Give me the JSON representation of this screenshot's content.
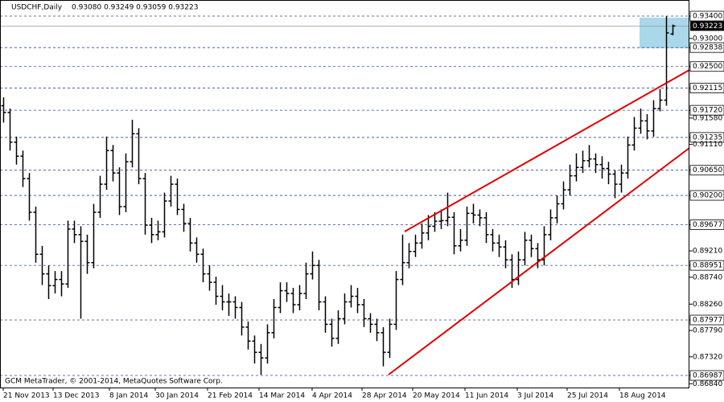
{
  "chart_data": {
    "type": "ohlc",
    "title": "USDCHF,Daily",
    "header_values": "0.93080 0.93249 0.93059 0.93223",
    "footer": "GCM MetaTrader, © 2001-2014, MetaQuotes Software Corp.",
    "ylim": [
      0.86772,
      0.93687
    ],
    "yticks": [
      {
        "value": 0.934,
        "label": "0.93400"
      },
      {
        "value": 0.93,
        "label": "0.93000"
      },
      {
        "value": 0.92838,
        "label": "0.92838"
      },
      {
        "value": 0.925,
        "label": "0.92500"
      },
      {
        "value": 0.92115,
        "label": "0.92115"
      },
      {
        "value": 0.9172,
        "label": "0.91720"
      },
      {
        "value": 0.9158,
        "label": "0.91580"
      },
      {
        "value": 0.91235,
        "label": "0.91235"
      },
      {
        "value": 0.9111,
        "label": "0.91110"
      },
      {
        "value": 0.9065,
        "label": "0.90650"
      },
      {
        "value": 0.902,
        "label": "0.90200"
      },
      {
        "value": 0.89677,
        "label": "0.89677"
      },
      {
        "value": 0.8921,
        "label": "0.89210"
      },
      {
        "value": 0.88951,
        "label": "0.88951"
      },
      {
        "value": 0.8874,
        "label": "0.88740"
      },
      {
        "value": 0.8826,
        "label": "0.88260"
      },
      {
        "value": 0.87977,
        "label": "0.87977"
      },
      {
        "value": 0.8779,
        "label": "0.87790"
      },
      {
        "value": 0.8732,
        "label": "0.87320"
      },
      {
        "value": 0.86987,
        "label": "0.86987"
      },
      {
        "value": 0.8684,
        "label": "0.86840"
      }
    ],
    "hlines": [
      0.934,
      0.92838,
      0.925,
      0.92115,
      0.9172,
      0.91235,
      0.9065,
      0.902,
      0.89677,
      0.88951,
      0.87977,
      0.86987
    ],
    "current_price": {
      "value": 0.93223,
      "label": "0.93223"
    },
    "xticks": [
      "21 Nov 2013",
      "13 Dec 2013",
      "8 Jan 2014",
      "30 Jan 2014",
      "21 Feb 2014",
      "14 Mar 2014",
      "4 Apr 2014",
      "28 Apr 2014",
      "20 May 2014",
      "11 Jun 2014",
      "3 Jul 2014",
      "25 Jul 2014",
      "18 Aug 2014"
    ],
    "ohlc": [
      [
        0.918,
        0.9195,
        0.915,
        0.9168
      ],
      [
        0.9168,
        0.9175,
        0.91,
        0.9115
      ],
      [
        0.9115,
        0.9125,
        0.9075,
        0.909
      ],
      [
        0.909,
        0.91,
        0.9035,
        0.905
      ],
      [
        0.905,
        0.906,
        0.8975,
        0.899
      ],
      [
        0.899,
        0.9,
        0.89,
        0.8915
      ],
      [
        0.8915,
        0.893,
        0.886,
        0.888
      ],
      [
        0.888,
        0.8895,
        0.8835,
        0.8859
      ],
      [
        0.8859,
        0.8885,
        0.8845,
        0.887
      ],
      [
        0.887,
        0.8885,
        0.884,
        0.8862
      ],
      [
        0.8862,
        0.8975,
        0.8855,
        0.896
      ],
      [
        0.896,
        0.8975,
        0.8935,
        0.895
      ],
      [
        0.895,
        0.8965,
        0.88,
        0.8938
      ],
      [
        0.8938,
        0.895,
        0.888,
        0.89
      ],
      [
        0.89,
        0.9005,
        0.889,
        0.899
      ],
      [
        0.899,
        0.9055,
        0.898,
        0.904
      ],
      [
        0.904,
        0.9125,
        0.903,
        0.91
      ],
      [
        0.91,
        0.911,
        0.9045,
        0.906
      ],
      [
        0.906,
        0.907,
        0.8985,
        0.9
      ],
      [
        0.9,
        0.9095,
        0.899,
        0.908
      ],
      [
        0.908,
        0.9155,
        0.907,
        0.913
      ],
      [
        0.913,
        0.914,
        0.904,
        0.905
      ],
      [
        0.905,
        0.906,
        0.895,
        0.8967
      ],
      [
        0.8967,
        0.898,
        0.8935,
        0.895
      ],
      [
        0.895,
        0.8975,
        0.894,
        0.8955
      ],
      [
        0.8955,
        0.9025,
        0.8945,
        0.901
      ],
      [
        0.901,
        0.9055,
        0.9,
        0.904
      ],
      [
        0.904,
        0.905,
        0.8985,
        0.8995
      ],
      [
        0.8995,
        0.9005,
        0.8955,
        0.897
      ],
      [
        0.897,
        0.898,
        0.892,
        0.8935
      ],
      [
        0.8935,
        0.8945,
        0.89,
        0.8915
      ],
      [
        0.8915,
        0.8925,
        0.8865,
        0.888
      ],
      [
        0.888,
        0.8895,
        0.885,
        0.8865
      ],
      [
        0.8865,
        0.8875,
        0.8825,
        0.884
      ],
      [
        0.884,
        0.886,
        0.8815,
        0.883
      ],
      [
        0.883,
        0.8845,
        0.8805,
        0.883
      ],
      [
        0.883,
        0.884,
        0.88,
        0.882
      ],
      [
        0.882,
        0.883,
        0.877,
        0.8785
      ],
      [
        0.8785,
        0.8795,
        0.8745,
        0.876
      ],
      [
        0.876,
        0.877,
        0.872,
        0.874
      ],
      [
        0.874,
        0.8755,
        0.87,
        0.873
      ],
      [
        0.873,
        0.879,
        0.872,
        0.8775
      ],
      [
        0.8775,
        0.8835,
        0.8765,
        0.882
      ],
      [
        0.882,
        0.8865,
        0.881,
        0.885
      ],
      [
        0.885,
        0.8865,
        0.883,
        0.8845
      ],
      [
        0.8845,
        0.8855,
        0.881,
        0.8825
      ],
      [
        0.8825,
        0.886,
        0.8815,
        0.8845
      ],
      [
        0.8845,
        0.89,
        0.8835,
        0.888
      ],
      [
        0.888,
        0.892,
        0.887,
        0.8895
      ],
      [
        0.8895,
        0.8905,
        0.8815,
        0.883
      ],
      [
        0.883,
        0.884,
        0.8775,
        0.879
      ],
      [
        0.879,
        0.88,
        0.875,
        0.8765
      ],
      [
        0.8765,
        0.8815,
        0.8755,
        0.88
      ],
      [
        0.88,
        0.8845,
        0.879,
        0.883
      ],
      [
        0.883,
        0.886,
        0.882,
        0.884
      ],
      [
        0.884,
        0.8855,
        0.881,
        0.8825
      ],
      [
        0.8825,
        0.8835,
        0.8785,
        0.88
      ],
      [
        0.88,
        0.881,
        0.8775,
        0.879
      ],
      [
        0.879,
        0.88,
        0.876,
        0.8775
      ],
      [
        0.8775,
        0.8785,
        0.8715,
        0.874
      ],
      [
        0.874,
        0.88,
        0.873,
        0.879
      ],
      [
        0.879,
        0.8885,
        0.878,
        0.887
      ],
      [
        0.887,
        0.895,
        0.886,
        0.89
      ],
      [
        0.89,
        0.8935,
        0.889,
        0.892
      ],
      [
        0.892,
        0.895,
        0.891,
        0.8935
      ],
      [
        0.8935,
        0.897,
        0.8925,
        0.8953
      ],
      [
        0.8953,
        0.8985,
        0.894,
        0.8965
      ],
      [
        0.8965,
        0.899,
        0.8955,
        0.8974
      ],
      [
        0.8974,
        0.8995,
        0.896,
        0.8975
      ],
      [
        0.8975,
        0.9025,
        0.8965,
        0.8981
      ],
      [
        0.8981,
        0.899,
        0.8915,
        0.893
      ],
      [
        0.893,
        0.896,
        0.892,
        0.894
      ],
      [
        0.894,
        0.9,
        0.893,
        0.8988
      ],
      [
        0.8988,
        0.9005,
        0.897,
        0.8985
      ],
      [
        0.8985,
        0.8995,
        0.8965,
        0.898
      ],
      [
        0.898,
        0.899,
        0.8935,
        0.895
      ],
      [
        0.895,
        0.896,
        0.892,
        0.8935
      ],
      [
        0.8935,
        0.895,
        0.891,
        0.8928
      ],
      [
        0.8928,
        0.894,
        0.889,
        0.8905
      ],
      [
        0.8905,
        0.8915,
        0.8855,
        0.887
      ],
      [
        0.887,
        0.892,
        0.886,
        0.8905
      ],
      [
        0.8905,
        0.8955,
        0.8895,
        0.894
      ],
      [
        0.894,
        0.895,
        0.891,
        0.8925
      ],
      [
        0.8925,
        0.8935,
        0.889,
        0.8905
      ],
      [
        0.8905,
        0.8965,
        0.8895,
        0.895
      ],
      [
        0.895,
        0.8995,
        0.894,
        0.898
      ],
      [
        0.898,
        0.902,
        0.897,
        0.9005
      ],
      [
        0.9005,
        0.9045,
        0.8995,
        0.903
      ],
      [
        0.903,
        0.9075,
        0.902,
        0.9055
      ],
      [
        0.9055,
        0.9095,
        0.9045,
        0.907
      ],
      [
        0.907,
        0.91,
        0.906,
        0.9082
      ],
      [
        0.9082,
        0.911,
        0.907,
        0.9085
      ],
      [
        0.9085,
        0.9095,
        0.906,
        0.9075
      ],
      [
        0.9075,
        0.909,
        0.905,
        0.9068
      ],
      [
        0.9068,
        0.908,
        0.904,
        0.9058
      ],
      [
        0.9058,
        0.9065,
        0.9015,
        0.904
      ],
      [
        0.904,
        0.9075,
        0.9025,
        0.906
      ],
      [
        0.906,
        0.9125,
        0.905,
        0.911
      ],
      [
        0.911,
        0.916,
        0.91,
        0.914
      ],
      [
        0.914,
        0.9175,
        0.913,
        0.9153
      ],
      [
        0.9153,
        0.9165,
        0.912,
        0.9135
      ],
      [
        0.9135,
        0.919,
        0.9125,
        0.9175
      ],
      [
        0.9175,
        0.921,
        0.917,
        0.919
      ],
      [
        0.919,
        0.934,
        0.918,
        0.931
      ],
      [
        0.9308,
        0.93249,
        0.93059,
        0.93223
      ]
    ],
    "color": "#000000"
  }
}
